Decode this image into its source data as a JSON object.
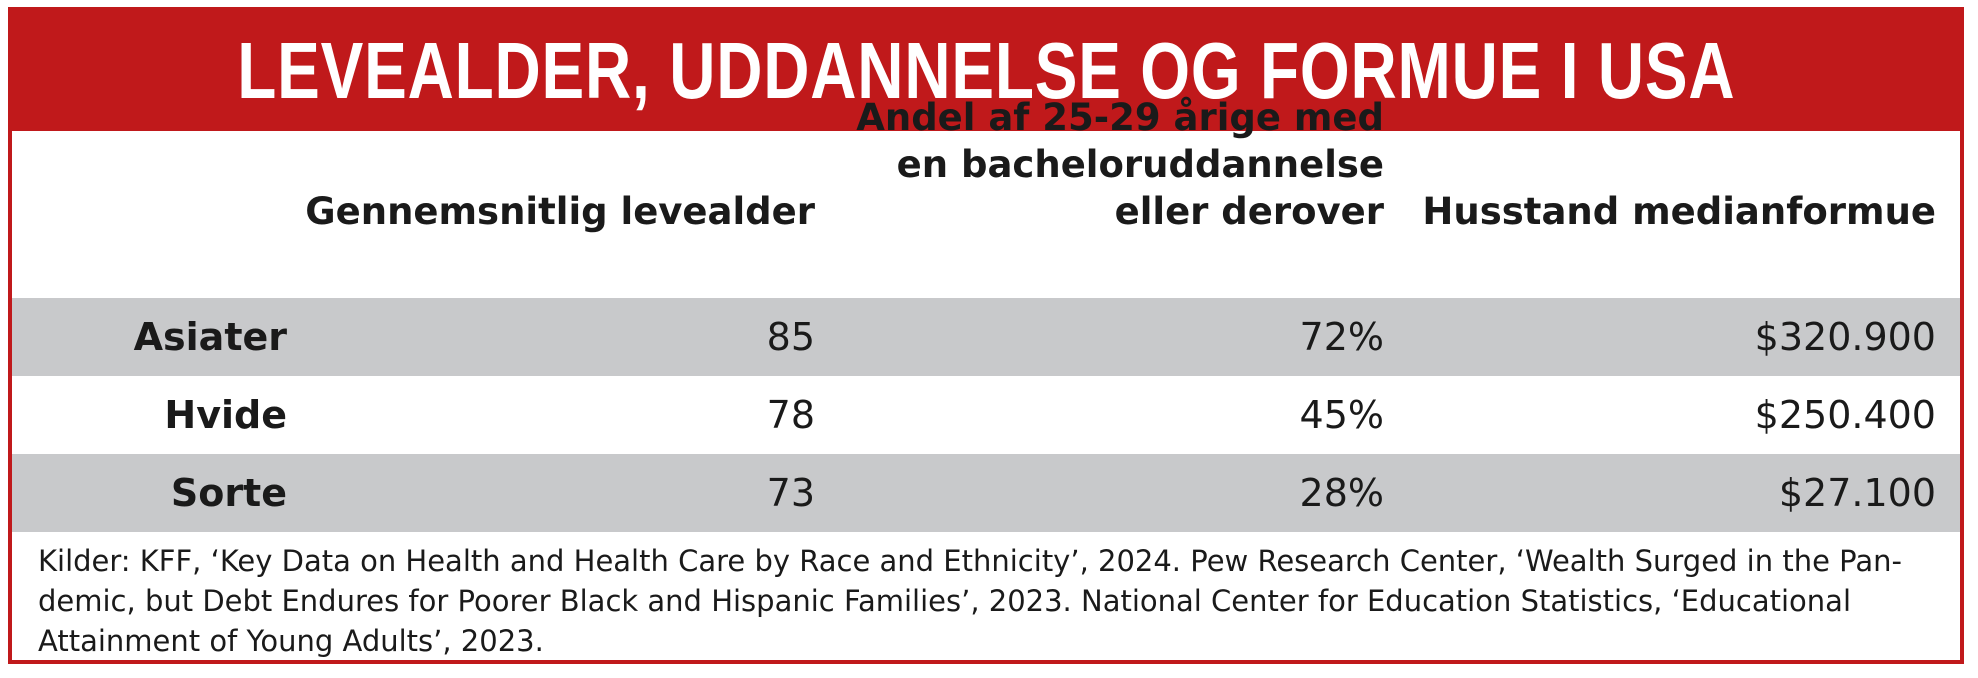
{
  "title": "LEVEALDER, UDDANNELSE OG FORMUE I USA",
  "columns": [
    "Gennemsnitlig levealder",
    "Andel af 25-29 årige med en bacheloruddannelse eller derover",
    "Husstand medianformue"
  ],
  "column_header_lines": [
    [
      "Gennemsnitlig levealder"
    ],
    [
      "Andel af 25-29 årige med",
      "en bacheloruddannelse",
      "eller derover"
    ],
    [
      "Husstand medianformue"
    ]
  ],
  "rows": [
    {
      "group": "Asiater",
      "life_expectancy": "85",
      "bachelor_share": "72%",
      "median_wealth": "$320.900",
      "shaded": true
    },
    {
      "group": "Hvide",
      "life_expectancy": "78",
      "bachelor_share": "45%",
      "median_wealth": "$250.400",
      "shaded": false
    },
    {
      "group": "Sorte",
      "life_expectancy": "73",
      "bachelor_share": "28%",
      "median_wealth": "$27.100",
      "shaded": true
    }
  ],
  "source_lines": [
    "Kilder: KFF, ‘Key Data on Health and Health Care by Race and Ethnicity’, 2024. Pew Research Center, ‘Wealth Surged in the Pan-",
    "demic, but Debt Endures for Poorer Black and Hispanic Families’, 2023. National Center for Education Statistics, ‘Educational",
    "Attainment of Young Adults’, 2023."
  ],
  "colors": {
    "brand_red": "#c0191b",
    "row_shade": "#c8c9cb",
    "text": "#1a1a1a"
  }
}
